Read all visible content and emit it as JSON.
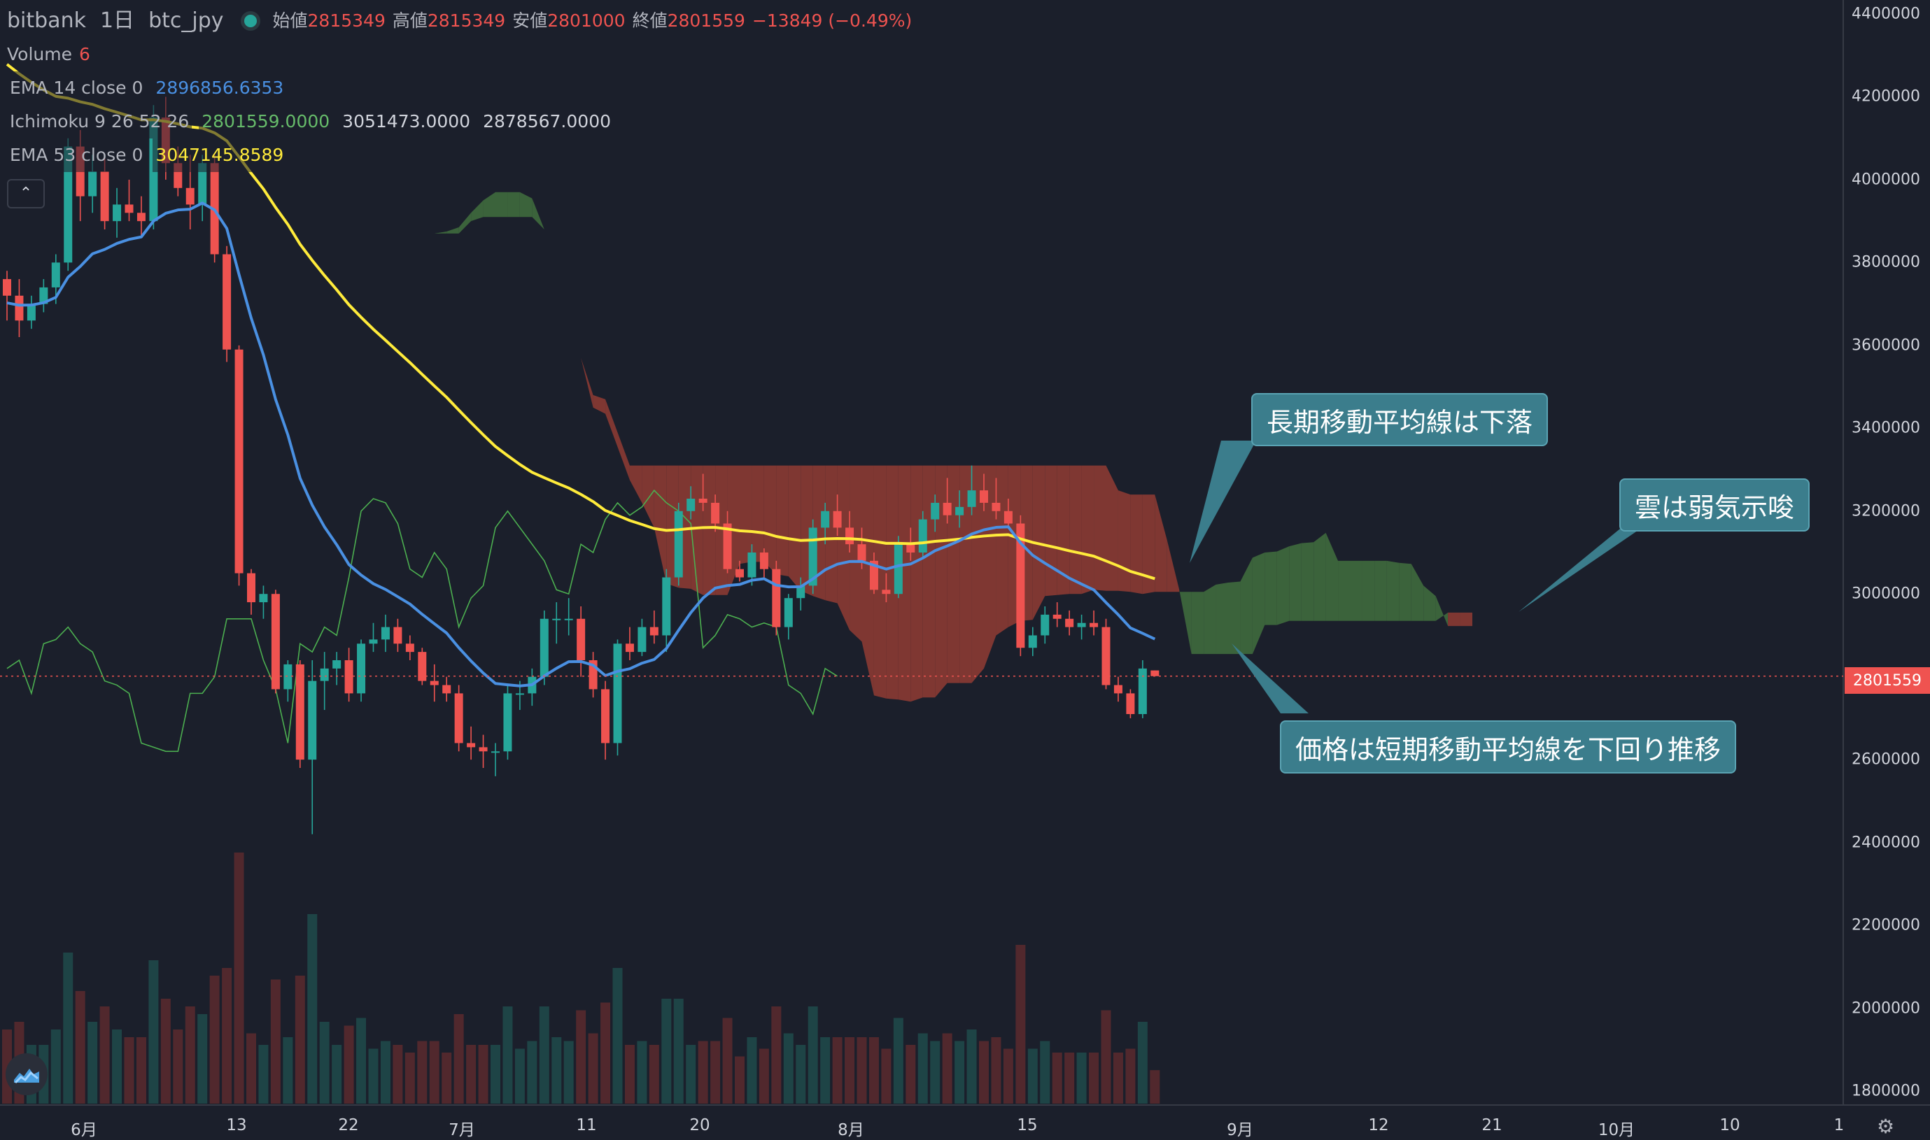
{
  "header": {
    "exchange": "bitbank",
    "interval": "1日",
    "symbol": "btc_jpy",
    "ohlc": [
      {
        "label": "始値",
        "value": "2815349"
      },
      {
        "label": "高値",
        "value": "2815349"
      },
      {
        "label": "安値",
        "value": "2801000"
      },
      {
        "label": "終値",
        "value": "2801559"
      }
    ],
    "change": "−13849 (−0.49%)"
  },
  "indicators": {
    "volume": {
      "name": "Volume",
      "value": "6"
    },
    "ema14": {
      "name": "EMA 14 close 0",
      "value": "2896856.6353"
    },
    "ichimoku": {
      "name": "Ichimoku 9 26 52 26",
      "v1": "2801559.0000",
      "v2": "3051473.0000",
      "v3": "2878567.0000"
    },
    "ema53": {
      "name": "EMA 53 close 0",
      "value": "3047145.8589"
    },
    "collapse_icon": "chevron-up-icon"
  },
  "price_axis": {
    "ticks": [
      "4400000",
      "4200000",
      "4000000",
      "3800000",
      "3600000",
      "3400000",
      "3200000",
      "3000000",
      "2800000",
      "2600000",
      "2400000",
      "2200000",
      "2000000",
      "1800000"
    ],
    "last_price": "2801559"
  },
  "time_axis": {
    "ticks": [
      "6月",
      "13",
      "22",
      "7月",
      "11",
      "20",
      "8月",
      "15",
      "9月",
      "12",
      "21",
      "10月",
      "10",
      "1"
    ]
  },
  "annotations": [
    {
      "text": "長期移動平均線は下落"
    },
    {
      "text": "雲は弱気示唆"
    },
    {
      "text": "価格は短期移動平均線を下回り推移"
    }
  ],
  "colors": {
    "background": "#1b1f2b",
    "up": "#26a69a",
    "down": "#ef5350",
    "ema14": "#4a90e2",
    "ema53": "#ffeb3b",
    "kumo_bear": "#8b3a33",
    "kumo_bull": "#3f6a3d",
    "callout": "#3b7d8c"
  },
  "icons": {
    "logo": "tradingview-logo-icon",
    "settings": "gear-icon"
  },
  "chart_data": {
    "type": "candlestick",
    "ylim": [
      1750000,
      4500000
    ],
    "candles": [
      [
        3760000,
        3780000,
        3660000,
        3720000
      ],
      [
        3720000,
        3760000,
        3620000,
        3660000
      ],
      [
        3660000,
        3720000,
        3640000,
        3700000
      ],
      [
        3700000,
        3760000,
        3680000,
        3740000
      ],
      [
        3740000,
        3820000,
        3700000,
        3800000
      ],
      [
        3800000,
        4100000,
        3780000,
        4080000
      ],
      [
        4080000,
        4120000,
        3900000,
        3960000
      ],
      [
        3960000,
        4060000,
        3920000,
        4020000
      ],
      [
        4020000,
        4060000,
        3880000,
        3900000
      ],
      [
        3900000,
        3980000,
        3860000,
        3940000
      ],
      [
        3940000,
        4000000,
        3900000,
        3920000
      ],
      [
        3920000,
        3960000,
        3860000,
        3900000
      ],
      [
        3900000,
        4180000,
        3880000,
        4150000
      ],
      [
        4150000,
        4200000,
        4000000,
        4040000
      ],
      [
        4040000,
        4080000,
        3960000,
        3980000
      ],
      [
        3980000,
        4060000,
        3880000,
        3940000
      ],
      [
        3940000,
        4060000,
        3900000,
        4040000
      ],
      [
        4040000,
        4060000,
        3800000,
        3820000
      ],
      [
        3820000,
        3840000,
        3560000,
        3590000
      ],
      [
        3590000,
        3600000,
        3020000,
        3050000
      ],
      [
        3050000,
        3060000,
        2950000,
        2980000
      ],
      [
        2980000,
        3020000,
        2940000,
        3000000
      ],
      [
        3000000,
        3010000,
        2760000,
        2770000
      ],
      [
        2770000,
        2840000,
        2740000,
        2830000
      ],
      [
        2830000,
        2840000,
        2580000,
        2600000
      ],
      [
        2600000,
        2840000,
        2420000,
        2790000
      ],
      [
        2790000,
        2860000,
        2720000,
        2820000
      ],
      [
        2820000,
        2860000,
        2780000,
        2840000
      ],
      [
        2840000,
        2870000,
        2740000,
        2760000
      ],
      [
        2760000,
        2890000,
        2740000,
        2880000
      ],
      [
        2880000,
        2930000,
        2860000,
        2890000
      ],
      [
        2890000,
        2950000,
        2860000,
        2920000
      ],
      [
        2920000,
        2940000,
        2860000,
        2880000
      ],
      [
        2880000,
        2900000,
        2840000,
        2860000
      ],
      [
        2860000,
        2870000,
        2780000,
        2790000
      ],
      [
        2790000,
        2830000,
        2740000,
        2780000
      ],
      [
        2780000,
        2800000,
        2740000,
        2760000
      ],
      [
        2760000,
        2780000,
        2620000,
        2640000
      ],
      [
        2640000,
        2680000,
        2600000,
        2630000
      ],
      [
        2630000,
        2660000,
        2580000,
        2620000
      ],
      [
        2620000,
        2640000,
        2560000,
        2620000
      ],
      [
        2620000,
        2780000,
        2600000,
        2760000
      ],
      [
        2760000,
        2790000,
        2720000,
        2760000
      ],
      [
        2760000,
        2820000,
        2730000,
        2800000
      ],
      [
        2800000,
        2960000,
        2780000,
        2940000
      ],
      [
        2940000,
        2980000,
        2880000,
        2940000
      ],
      [
        2940000,
        2990000,
        2900000,
        2940000
      ],
      [
        2940000,
        2970000,
        2800000,
        2840000
      ],
      [
        2840000,
        2860000,
        2750000,
        2770000
      ],
      [
        2770000,
        2790000,
        2600000,
        2640000
      ],
      [
        2640000,
        2890000,
        2610000,
        2880000
      ],
      [
        2880000,
        2920000,
        2840000,
        2860000
      ],
      [
        2860000,
        2940000,
        2850000,
        2920000
      ],
      [
        2920000,
        2960000,
        2880000,
        2900000
      ],
      [
        2900000,
        3060000,
        2860000,
        3040000
      ],
      [
        3040000,
        3220000,
        3020000,
        3200000
      ],
      [
        3200000,
        3260000,
        3180000,
        3230000
      ],
      [
        3230000,
        3290000,
        3200000,
        3220000
      ],
      [
        3220000,
        3240000,
        3150000,
        3170000
      ],
      [
        3170000,
        3200000,
        3050000,
        3060000
      ],
      [
        3060000,
        3080000,
        3030000,
        3040000
      ],
      [
        3040000,
        3120000,
        3020000,
        3100000
      ],
      [
        3100000,
        3110000,
        3040000,
        3060000
      ],
      [
        3060000,
        3080000,
        2900000,
        2920000
      ],
      [
        2920000,
        3000000,
        2890000,
        2990000
      ],
      [
        2990000,
        3040000,
        2960000,
        3020000
      ],
      [
        3020000,
        3180000,
        3000000,
        3160000
      ],
      [
        3160000,
        3220000,
        3120000,
        3200000
      ],
      [
        3200000,
        3240000,
        3140000,
        3160000
      ],
      [
        3160000,
        3200000,
        3100000,
        3120000
      ],
      [
        3120000,
        3160000,
        3060000,
        3080000
      ],
      [
        3080000,
        3100000,
        3000000,
        3010000
      ],
      [
        3010000,
        3050000,
        2980000,
        3000000
      ],
      [
        3000000,
        3140000,
        2990000,
        3120000
      ],
      [
        3120000,
        3160000,
        3080000,
        3100000
      ],
      [
        3100000,
        3200000,
        3090000,
        3180000
      ],
      [
        3180000,
        3240000,
        3150000,
        3220000
      ],
      [
        3220000,
        3280000,
        3170000,
        3190000
      ],
      [
        3190000,
        3250000,
        3160000,
        3210000
      ],
      [
        3210000,
        3310000,
        3190000,
        3250000
      ],
      [
        3250000,
        3290000,
        3200000,
        3220000
      ],
      [
        3220000,
        3280000,
        3180000,
        3200000
      ],
      [
        3200000,
        3230000,
        3160000,
        3170000
      ],
      [
        3170000,
        3190000,
        2850000,
        2870000
      ],
      [
        2870000,
        2920000,
        2850000,
        2900000
      ],
      [
        2900000,
        2970000,
        2880000,
        2950000
      ],
      [
        2950000,
        2980000,
        2920000,
        2940000
      ],
      [
        2940000,
        2960000,
        2900000,
        2920000
      ],
      [
        2920000,
        2950000,
        2890000,
        2930000
      ],
      [
        2930000,
        2960000,
        2900000,
        2920000
      ],
      [
        2920000,
        2940000,
        2770000,
        2780000
      ],
      [
        2780000,
        2800000,
        2740000,
        2760000
      ],
      [
        2760000,
        2770000,
        2700000,
        2710000
      ],
      [
        2710000,
        2840000,
        2700000,
        2820000
      ],
      [
        2815349,
        2815349,
        2801000,
        2801559
      ]
    ]
  }
}
